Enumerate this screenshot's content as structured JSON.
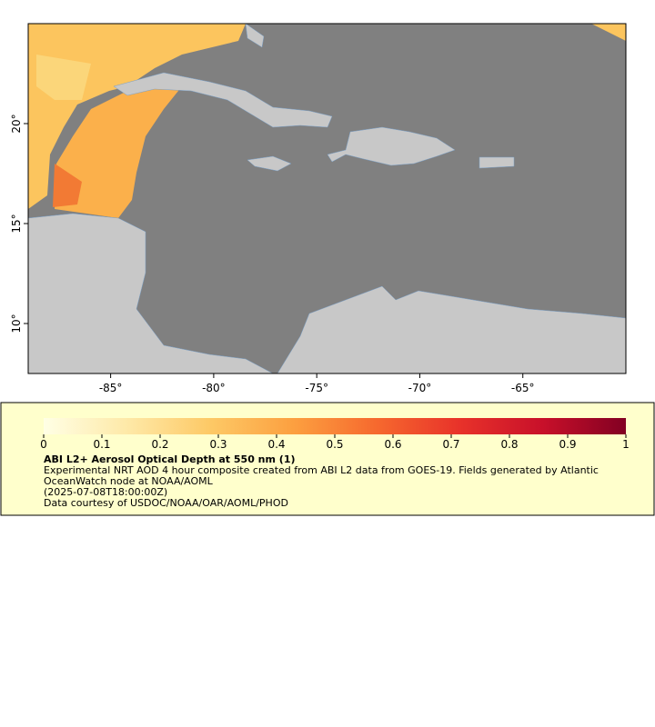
{
  "map": {
    "xlim": [
      -89,
      -60
    ],
    "ylim": [
      7.5,
      25
    ],
    "xticks": [
      {
        "value": -85,
        "label": "-85°"
      },
      {
        "value": -80,
        "label": "-80°"
      },
      {
        "value": -75,
        "label": "-75°"
      },
      {
        "value": -70,
        "label": "-70°"
      },
      {
        "value": -65,
        "label": "-65°"
      }
    ],
    "yticks": [
      {
        "value": 10,
        "label": "10°"
      },
      {
        "value": 15,
        "label": "15°"
      },
      {
        "value": 20,
        "label": "20°"
      }
    ]
  },
  "legend": {
    "colorbar": {
      "range": [
        0,
        1
      ],
      "ticks": [
        0,
        0.1,
        0.2,
        0.3,
        0.4,
        0.5,
        0.6,
        0.7,
        0.8,
        0.9,
        1
      ],
      "colors": [
        "#ffffe5",
        "#fee9a8",
        "#fdc966",
        "#fca040",
        "#f6692e",
        "#e8322a",
        "#c8102a",
        "#820022"
      ]
    },
    "title": "ABI L2+ Aerosol Optical Depth at 550 nm (1)",
    "description": "Experimental NRT AOD 4 hour composite created from ABI L2 data from GOES-19. Fields generated by Atlantic OceanWatch node at NOAA/AOML",
    "time": "(2025-07-08T18:00:00Z)",
    "credit": "Data courtesy of USDOC/NOAA/OAR/AOML/PHOD"
  }
}
